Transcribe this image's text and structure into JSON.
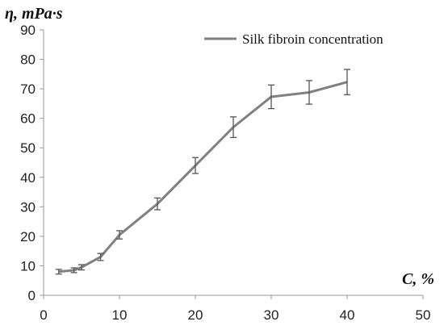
{
  "chart_data": {
    "type": "line",
    "title": "",
    "xlabel": "C, %",
    "ylabel": "η, mPa·s",
    "xlim": [
      0,
      50
    ],
    "ylim": [
      0,
      90
    ],
    "x_ticks": [
      0,
      10,
      20,
      30,
      40,
      50
    ],
    "y_ticks": [
      0,
      10,
      20,
      30,
      40,
      50,
      60,
      70,
      80,
      90
    ],
    "grid": false,
    "legend_position": "top-right",
    "series": [
      {
        "name": "Silk fibroin concentration",
        "color": "#808080",
        "x": [
          2,
          4,
          5,
          7.5,
          10,
          15,
          20,
          25,
          30,
          35,
          40
        ],
        "y": [
          8,
          8.5,
          9.5,
          13,
          20.5,
          31,
          44,
          57,
          67.3,
          68.8,
          72.3
        ],
        "error": [
          0.8,
          0.8,
          0.9,
          1.2,
          1.4,
          2.0,
          2.7,
          3.5,
          4.0,
          4.0,
          4.3
        ]
      }
    ]
  }
}
